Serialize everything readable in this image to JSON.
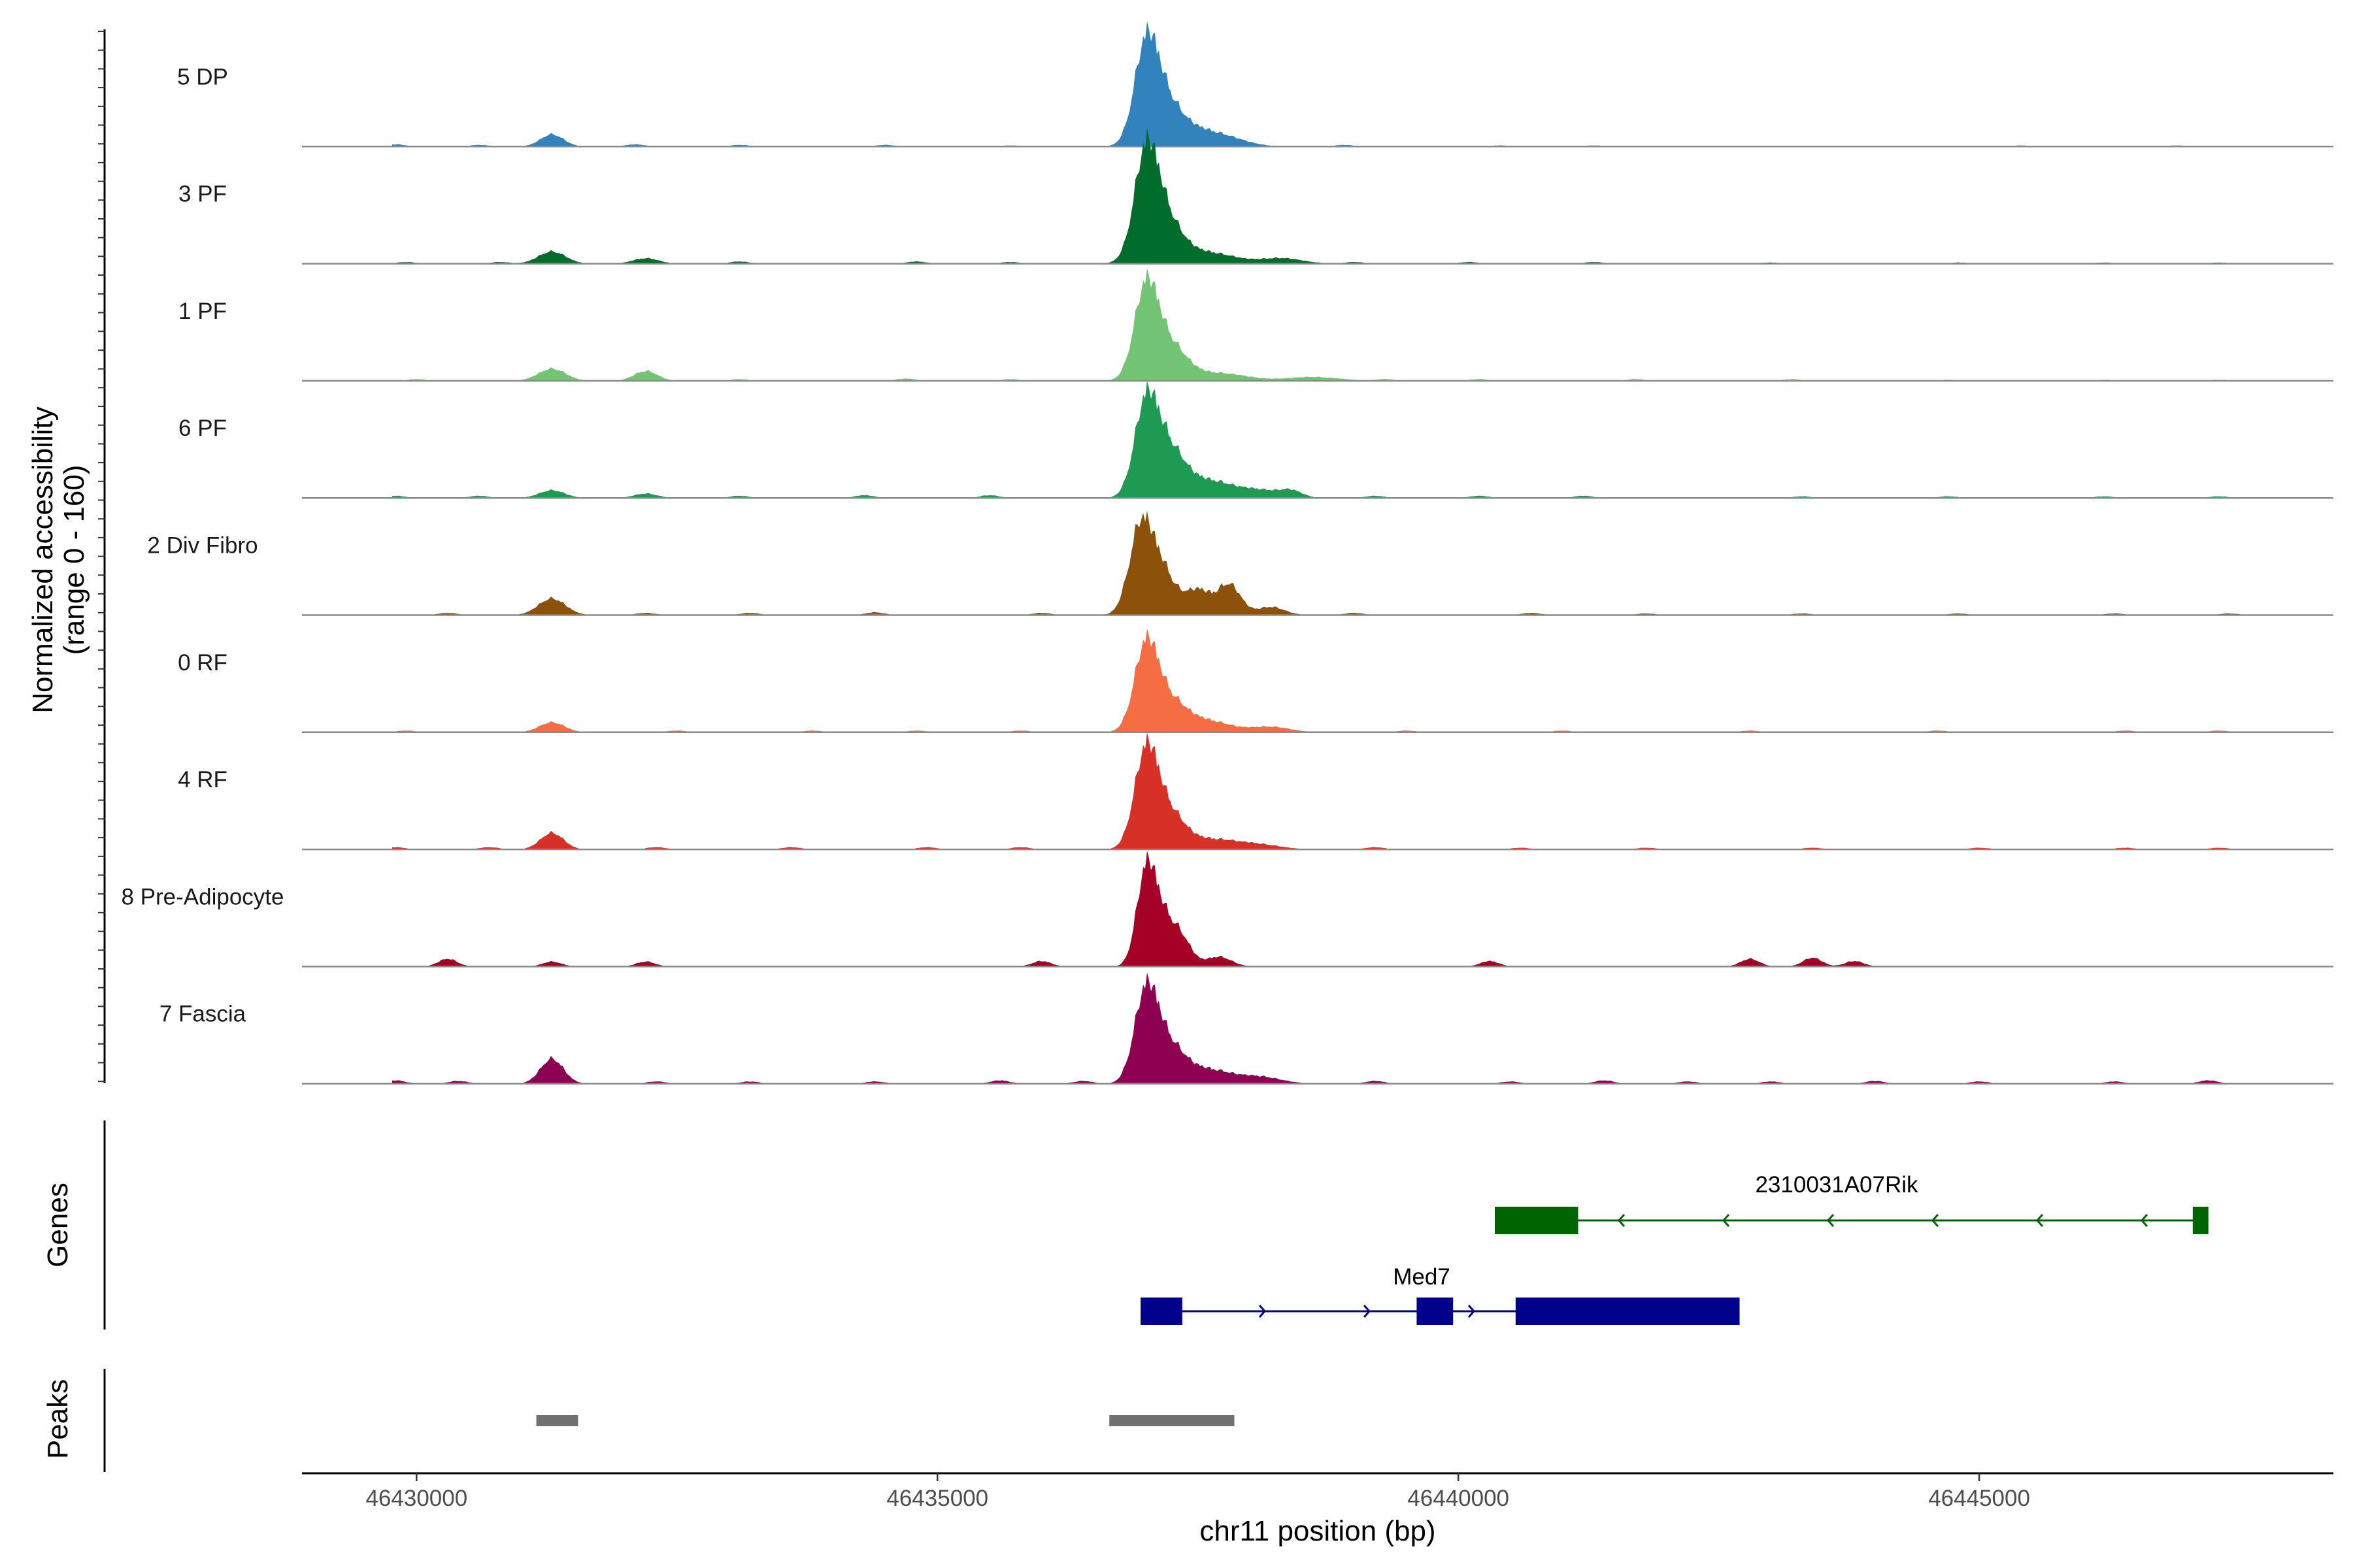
{
  "chart_data": {
    "type": "area",
    "title": "",
    "chromosome": "chr11",
    "xlabel": "chr11 position (bp)",
    "ylabel": "Normalized accessibility",
    "ylabel_range": "(range 0 - 160)",
    "yrange": [
      0,
      160
    ],
    "xlim": [
      46428900,
      46448400
    ],
    "xticks": [
      46430000,
      46435000,
      46440000,
      46445000
    ],
    "xtick_labels": [
      "46430000",
      "46435000",
      "46440000",
      "46445000"
    ],
    "tracks": [
      {
        "name": "5 DP",
        "color": "#3182bd",
        "peaks": [
          [
            46431300,
            22,
            110
          ],
          [
            46437000,
            150,
            110
          ],
          [
            46437150,
            80,
            160
          ],
          [
            46437450,
            28,
            220
          ],
          [
            46437800,
            12,
            200
          ]
        ],
        "noise": [
          [
            46429800,
            4
          ],
          [
            46430600,
            3
          ],
          [
            46432100,
            4
          ],
          [
            46433100,
            3
          ],
          [
            46434500,
            3
          ],
          [
            46435700,
            2
          ],
          [
            46438900,
            3
          ],
          [
            46440400,
            2
          ],
          [
            46441300,
            2
          ],
          [
            46445400,
            2
          ],
          [
            46446900,
            2
          ]
        ]
      },
      {
        "name": "3 PF",
        "color": "#006d2c",
        "peaks": [
          [
            46431300,
            22,
            130
          ],
          [
            46432200,
            10,
            120
          ],
          [
            46437000,
            160,
            110
          ],
          [
            46437150,
            90,
            170
          ],
          [
            46437600,
            20,
            250
          ],
          [
            46438300,
            10,
            200
          ]
        ],
        "noise": [
          [
            46429900,
            3
          ],
          [
            46430800,
            3
          ],
          [
            46433100,
            4
          ],
          [
            46434800,
            4
          ],
          [
            46435700,
            3
          ],
          [
            46439000,
            3
          ],
          [
            46440100,
            3
          ],
          [
            46441300,
            3
          ],
          [
            46443000,
            2
          ],
          [
            46444800,
            2
          ],
          [
            46446200,
            2
          ],
          [
            46447300,
            2
          ]
        ]
      },
      {
        "name": "1 PF",
        "color": "#74c476",
        "peaks": [
          [
            46431300,
            22,
            130
          ],
          [
            46432200,
            18,
            110
          ],
          [
            46437000,
            150,
            110
          ],
          [
            46437200,
            70,
            170
          ],
          [
            46437700,
            14,
            260
          ],
          [
            46438600,
            7,
            250
          ]
        ],
        "noise": [
          [
            46430000,
            3
          ],
          [
            46433100,
            3
          ],
          [
            46434700,
            4
          ],
          [
            46435700,
            3
          ],
          [
            46439300,
            3
          ],
          [
            46440200,
            3
          ],
          [
            46441700,
            3
          ],
          [
            46443200,
            3
          ],
          [
            46444700,
            2
          ],
          [
            46446200,
            2
          ],
          [
            46447300,
            2
          ]
        ]
      },
      {
        "name": "6 PF",
        "color": "#1f9a52",
        "peaks": [
          [
            46431300,
            14,
            120
          ],
          [
            46432200,
            8,
            110
          ],
          [
            46437000,
            150,
            110
          ],
          [
            46437200,
            90,
            160
          ],
          [
            46437600,
            30,
            220
          ],
          [
            46438100,
            14,
            220
          ],
          [
            46438400,
            10,
            100
          ]
        ],
        "noise": [
          [
            46429800,
            4
          ],
          [
            46430600,
            4
          ],
          [
            46433100,
            4
          ],
          [
            46434300,
            5
          ],
          [
            46435500,
            5
          ],
          [
            46439200,
            4
          ],
          [
            46440200,
            4
          ],
          [
            46441200,
            4
          ],
          [
            46443300,
            3
          ],
          [
            46444700,
            3
          ],
          [
            46446200,
            3
          ],
          [
            46447300,
            3
          ]
        ]
      },
      {
        "name": "2 Div Fibro",
        "color": "#8c510a",
        "peaks": [
          [
            46431300,
            30,
            130
          ],
          [
            46436950,
            150,
            110
          ],
          [
            46437150,
            80,
            130
          ],
          [
            46437500,
            45,
            120
          ],
          [
            46437800,
            55,
            110
          ],
          [
            46438200,
            15,
            130
          ]
        ],
        "noise": [
          [
            46430300,
            4
          ],
          [
            46432200,
            4
          ],
          [
            46433200,
            4
          ],
          [
            46434400,
            5
          ],
          [
            46436000,
            4
          ],
          [
            46439000,
            4
          ],
          [
            46440700,
            4
          ],
          [
            46441800,
            3
          ],
          [
            46443300,
            3
          ],
          [
            46444800,
            3
          ],
          [
            46446300,
            3
          ],
          [
            46447400,
            3
          ]
        ]
      },
      {
        "name": "0 RF",
        "color": "#f46d43",
        "peaks": [
          [
            46431300,
            18,
            120
          ],
          [
            46437000,
            140,
            110
          ],
          [
            46437200,
            60,
            170
          ],
          [
            46437600,
            20,
            220
          ],
          [
            46438200,
            10,
            180
          ]
        ],
        "noise": [
          [
            46429900,
            3
          ],
          [
            46432500,
            3
          ],
          [
            46433800,
            3
          ],
          [
            46434800,
            3
          ],
          [
            46435800,
            3
          ],
          [
            46439500,
            3
          ],
          [
            46441000,
            3
          ],
          [
            46442800,
            3
          ],
          [
            46444600,
            3
          ],
          [
            46446400,
            3
          ],
          [
            46447300,
            3
          ]
        ]
      },
      {
        "name": "4 RF",
        "color": "#d73027",
        "peaks": [
          [
            46431300,
            30,
            110
          ],
          [
            46437000,
            160,
            110
          ],
          [
            46437200,
            70,
            160
          ],
          [
            46437650,
            18,
            230
          ],
          [
            46438100,
            8,
            200
          ]
        ],
        "noise": [
          [
            46429800,
            4
          ],
          [
            46430700,
            4
          ],
          [
            46432300,
            4
          ],
          [
            46433600,
            4
          ],
          [
            46434900,
            4
          ],
          [
            46435800,
            4
          ],
          [
            46439200,
            4
          ],
          [
            46440600,
            3
          ],
          [
            46441800,
            3
          ],
          [
            46443400,
            3
          ],
          [
            46445000,
            3
          ],
          [
            46446400,
            3
          ],
          [
            46447300,
            3
          ]
        ]
      },
      {
        "name": "8 Pre-Adipocyte",
        "color": "#a50026",
        "peaks": [
          [
            46437000,
            150,
            90
          ],
          [
            46437150,
            85,
            120
          ],
          [
            46437350,
            40,
            100
          ],
          [
            46437700,
            18,
            120
          ]
        ],
        "noise": [
          [
            46430300,
            14
          ],
          [
            46431300,
            9
          ],
          [
            46432200,
            9
          ],
          [
            46436000,
            10
          ],
          [
            46440300,
            10
          ],
          [
            46442800,
            14
          ],
          [
            46443400,
            16
          ],
          [
            46443800,
            10
          ]
        ]
      },
      {
        "name": "7 Fascia",
        "color": "#8e0152",
        "peaks": [
          [
            46431300,
            45,
            110
          ],
          [
            46437000,
            150,
            110
          ],
          [
            46437200,
            70,
            160
          ],
          [
            46437600,
            25,
            220
          ],
          [
            46438100,
            12,
            200
          ]
        ],
        "noise": [
          [
            46429800,
            6
          ],
          [
            46430400,
            5
          ],
          [
            46432300,
            4
          ],
          [
            46433200,
            4
          ],
          [
            46434400,
            4
          ],
          [
            46435600,
            6
          ],
          [
            46436400,
            5
          ],
          [
            46439200,
            5
          ],
          [
            46440500,
            4
          ],
          [
            46441400,
            6
          ],
          [
            46442200,
            4
          ],
          [
            46443000,
            4
          ],
          [
            46444000,
            5
          ],
          [
            46445000,
            4
          ],
          [
            46446300,
            4
          ],
          [
            46447200,
            6
          ]
        ]
      }
    ],
    "genes": [
      {
        "name": "2310031A07Rik",
        "strand": "-",
        "color": "#006400",
        "start": 46440350,
        "end": 46447200,
        "exons": [
          [
            46440350,
            46441150
          ],
          [
            46447050,
            46447200
          ]
        ]
      },
      {
        "name": "Med7",
        "strand": "+",
        "color": "#00008b",
        "start": 46436950,
        "end": 46442700,
        "exons": [
          [
            46436950,
            46437350
          ],
          [
            46439600,
            46439950
          ],
          [
            46440550,
            46442700
          ]
        ]
      }
    ],
    "peaks_track": [
      [
        46431150,
        46431550
      ],
      [
        46436650,
        46437850
      ]
    ],
    "track_titles": {
      "genes": "Genes",
      "peaks": "Peaks"
    },
    "peak_color": "#707070"
  }
}
